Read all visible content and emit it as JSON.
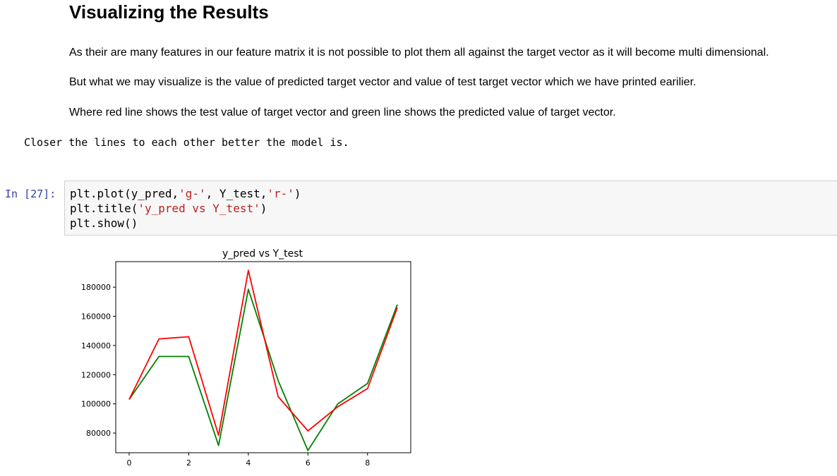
{
  "markdown": {
    "heading": "Visualizing the Results",
    "paragraphs": [
      "As their are many features in our feature matrix it is not possible to plot them all against the target vector as it will become multi dimensional.",
      "But what we may visualize is the value of predicted target vector and value of test target vector which we have printed earilier.",
      "Where red line shows the test value of target vector and green line shows the predicted value of target vector."
    ],
    "code_note": "Closer the lines to each other better the model is."
  },
  "code_cell": {
    "prompt": "In [27]:",
    "lines": [
      [
        {
          "t": "plt.plot(y_pred,",
          "c": "plain"
        },
        {
          "t": "'g-'",
          "c": "str"
        },
        {
          "t": ", Y_test,",
          "c": "plain"
        },
        {
          "t": "'r-'",
          "c": "str"
        },
        {
          "t": ")",
          "c": "plain"
        }
      ],
      [
        {
          "t": "plt.title(",
          "c": "plain"
        },
        {
          "t": "'y_pred vs Y_test'",
          "c": "str"
        },
        {
          "t": ")",
          "c": "plain"
        }
      ],
      [
        {
          "t": "plt.show()",
          "c": "plain"
        }
      ]
    ]
  },
  "chart_data": {
    "type": "line",
    "title": "y_pred vs Y_test",
    "xlabel": "",
    "ylabel": "",
    "x": [
      0,
      1,
      2,
      3,
      4,
      5,
      6,
      7,
      8,
      9
    ],
    "xticks": [
      0,
      2,
      4,
      6,
      8
    ],
    "yticks": [
      80000,
      100000,
      120000,
      140000,
      160000,
      180000
    ],
    "xlim": [
      -0.45,
      9.45
    ],
    "ylim": [
      66500,
      197500
    ],
    "grid": false,
    "series": [
      {
        "color": "#008000",
        "values": [
          103000,
          132500,
          132500,
          71500,
          178500,
          116000,
          68000,
          100000,
          114000,
          168000
        ]
      },
      {
        "color": "#ff0000",
        "values": [
          103000,
          144500,
          146000,
          78500,
          191500,
          105000,
          81500,
          98000,
          110500,
          166000
        ]
      }
    ]
  }
}
